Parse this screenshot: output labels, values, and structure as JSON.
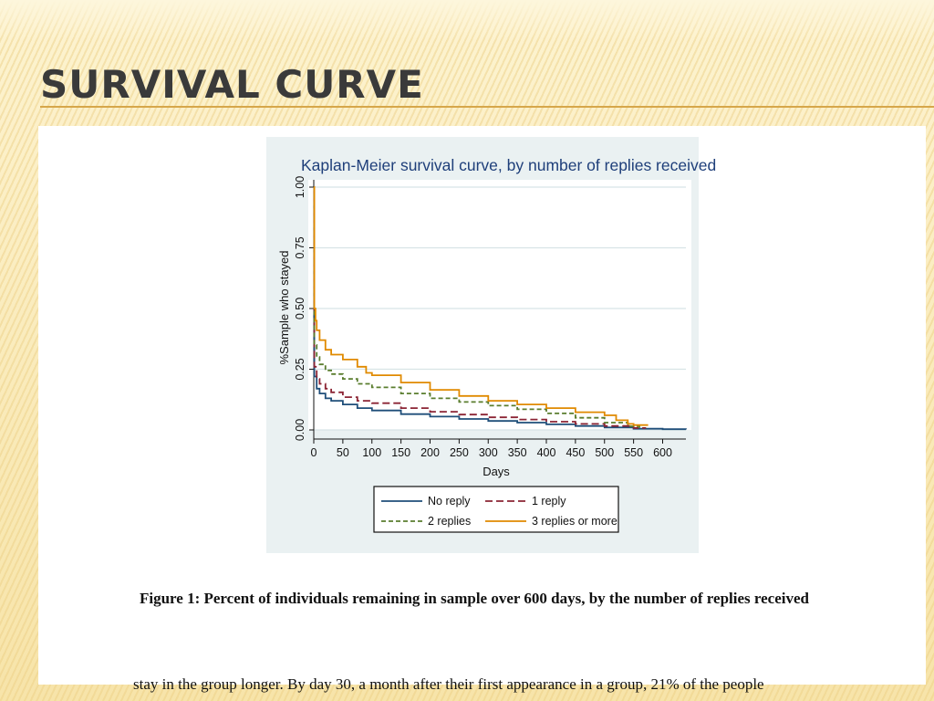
{
  "slide": {
    "title": "SURVIVAL CURVE",
    "caption": "Figure 1: Percent of individuals remaining in sample over 600 days, by the number of replies received",
    "body_text": "stay in the group longer. By day 30, a month after their first appearance in a group, 21% of the people"
  },
  "colors": {
    "accent_line": "#d6a74a",
    "chart_background": "#eaf1f2",
    "no_reply": "#1f4e79",
    "one_reply": "#8b2434",
    "two_replies": "#5a7d2e",
    "three_or_more": "#e08a00"
  },
  "chart_data": {
    "type": "line",
    "title": "Kaplan-Meier survival curve, by number of replies received",
    "xlabel": "Days",
    "ylabel": "%Sample who stayed",
    "xlim": [
      0,
      640
    ],
    "ylim": [
      0,
      1
    ],
    "x_ticks": [
      "0",
      "50",
      "100",
      "150",
      "200",
      "250",
      "300",
      "350",
      "400",
      "450",
      "500",
      "550",
      "600"
    ],
    "y_ticks": [
      "0.00",
      "0.25",
      "0.50",
      "0.75",
      "1.00"
    ],
    "grid": true,
    "legend_position": "bottom",
    "series": [
      {
        "name": "No reply",
        "color": "#1f4e79",
        "dash": "none",
        "points": [
          [
            0,
            1.0
          ],
          [
            1,
            0.22
          ],
          [
            5,
            0.17
          ],
          [
            10,
            0.15
          ],
          [
            20,
            0.13
          ],
          [
            30,
            0.12
          ],
          [
            50,
            0.105
          ],
          [
            75,
            0.09
          ],
          [
            100,
            0.08
          ],
          [
            150,
            0.065
          ],
          [
            200,
            0.055
          ],
          [
            250,
            0.045
          ],
          [
            300,
            0.037
          ],
          [
            350,
            0.03
          ],
          [
            400,
            0.023
          ],
          [
            450,
            0.016
          ],
          [
            500,
            0.01
          ],
          [
            550,
            0.005
          ],
          [
            600,
            0.003
          ],
          [
            640,
            0.002
          ]
        ]
      },
      {
        "name": "1 reply",
        "color": "#8b2434",
        "dash": "8,4",
        "points": [
          [
            0,
            1.0
          ],
          [
            1,
            0.26
          ],
          [
            5,
            0.21
          ],
          [
            10,
            0.19
          ],
          [
            20,
            0.17
          ],
          [
            30,
            0.155
          ],
          [
            50,
            0.135
          ],
          [
            75,
            0.12
          ],
          [
            100,
            0.11
          ],
          [
            150,
            0.09
          ],
          [
            200,
            0.075
          ],
          [
            250,
            0.063
          ],
          [
            300,
            0.052
          ],
          [
            350,
            0.043
          ],
          [
            400,
            0.034
          ],
          [
            450,
            0.025
          ],
          [
            500,
            0.016
          ],
          [
            550,
            0.008
          ],
          [
            570,
            0.005
          ]
        ]
      },
      {
        "name": "2 replies",
        "color": "#5a7d2e",
        "dash": "5,3",
        "points": [
          [
            0,
            1.0
          ],
          [
            1,
            0.35
          ],
          [
            5,
            0.3
          ],
          [
            10,
            0.27
          ],
          [
            20,
            0.245
          ],
          [
            30,
            0.23
          ],
          [
            50,
            0.21
          ],
          [
            75,
            0.19
          ],
          [
            100,
            0.175
          ],
          [
            150,
            0.15
          ],
          [
            200,
            0.13
          ],
          [
            250,
            0.115
          ],
          [
            300,
            0.1
          ],
          [
            350,
            0.085
          ],
          [
            400,
            0.068
          ],
          [
            450,
            0.05
          ],
          [
            500,
            0.03
          ],
          [
            540,
            0.015
          ],
          [
            560,
            0.008
          ]
        ]
      },
      {
        "name": "3 replies or more",
        "color": "#e08a00",
        "dash": "none",
        "points": [
          [
            0,
            1.0
          ],
          [
            1,
            0.5
          ],
          [
            3,
            0.45
          ],
          [
            5,
            0.41
          ],
          [
            10,
            0.37
          ],
          [
            20,
            0.33
          ],
          [
            30,
            0.31
          ],
          [
            50,
            0.29
          ],
          [
            75,
            0.26
          ],
          [
            90,
            0.235
          ],
          [
            100,
            0.225
          ],
          [
            150,
            0.195
          ],
          [
            200,
            0.165
          ],
          [
            250,
            0.14
          ],
          [
            300,
            0.12
          ],
          [
            350,
            0.105
          ],
          [
            400,
            0.09
          ],
          [
            450,
            0.073
          ],
          [
            500,
            0.06
          ],
          [
            520,
            0.04
          ],
          [
            540,
            0.025
          ],
          [
            550,
            0.02
          ],
          [
            575,
            0.02
          ]
        ]
      }
    ]
  }
}
